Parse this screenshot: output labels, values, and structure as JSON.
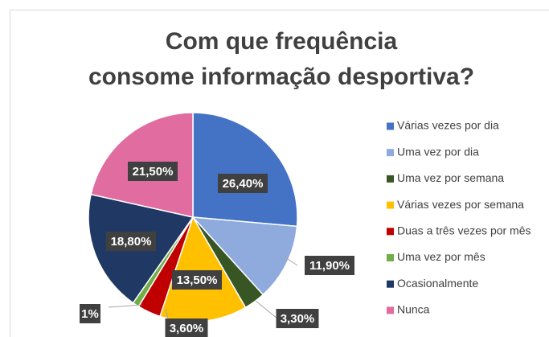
{
  "chart_data": {
    "type": "pie",
    "title": "Com que frequência consome informação desportiva?",
    "categories": [
      "Várias vezes por dia",
      "Uma vez por dia",
      "Uma vez por semana",
      "Várias vezes por semana",
      "Duas a três vezes por mês",
      "Uma vez por mês",
      "Ocasionalmente",
      "Nunca"
    ],
    "values": [
      26.4,
      11.9,
      3.3,
      13.5,
      3.6,
      1,
      18.8,
      21.5
    ],
    "value_labels": [
      "26,40%",
      "11,90%",
      "3,30%",
      "13,50%",
      "3,60%",
      "1%",
      "18,80%",
      "21,50%"
    ],
    "colors": [
      "#4472c4",
      "#8faadc",
      "#375623",
      "#ffc000",
      "#c00000",
      "#70ad47",
      "#203864",
      "#e06ca0"
    ],
    "legend": "right"
  }
}
